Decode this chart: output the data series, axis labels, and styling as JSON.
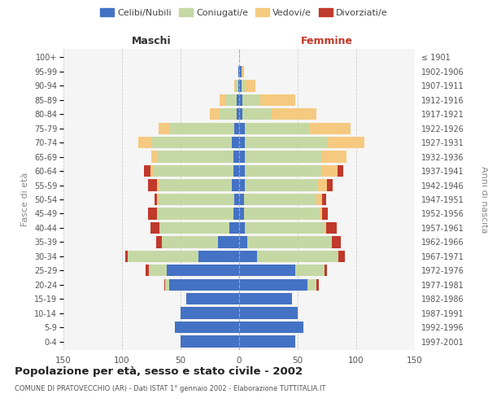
{
  "age_groups": [
    "0-4",
    "5-9",
    "10-14",
    "15-19",
    "20-24",
    "25-29",
    "30-34",
    "35-39",
    "40-44",
    "45-49",
    "50-54",
    "55-59",
    "60-64",
    "65-69",
    "70-74",
    "75-79",
    "80-84",
    "85-89",
    "90-94",
    "95-99",
    "100+"
  ],
  "birth_years": [
    "1997-2001",
    "1992-1996",
    "1987-1991",
    "1982-1986",
    "1977-1981",
    "1972-1976",
    "1967-1971",
    "1962-1966",
    "1957-1961",
    "1952-1956",
    "1947-1951",
    "1942-1946",
    "1937-1941",
    "1932-1936",
    "1927-1931",
    "1922-1926",
    "1917-1921",
    "1912-1916",
    "1907-1911",
    "1902-1906",
    "≤ 1901"
  ],
  "male_celibi": [
    50,
    55,
    50,
    45,
    60,
    62,
    35,
    18,
    8,
    5,
    4,
    6,
    5,
    5,
    6,
    4,
    2,
    2,
    1,
    1,
    0
  ],
  "male_coniugati": [
    0,
    0,
    0,
    0,
    3,
    15,
    60,
    48,
    60,
    65,
    65,
    62,
    68,
    65,
    68,
    55,
    15,
    10,
    2,
    0,
    0
  ],
  "male_vedovi": [
    0,
    0,
    0,
    0,
    0,
    0,
    0,
    0,
    0,
    0,
    1,
    2,
    3,
    5,
    12,
    10,
    8,
    5,
    1,
    0,
    0
  ],
  "male_div": [
    0,
    0,
    0,
    0,
    1,
    3,
    2,
    5,
    8,
    8,
    2,
    8,
    5,
    0,
    0,
    0,
    0,
    0,
    0,
    0,
    0
  ],
  "fem_nubili": [
    48,
    55,
    50,
    45,
    58,
    48,
    15,
    7,
    5,
    4,
    4,
    5,
    5,
    5,
    5,
    5,
    3,
    3,
    2,
    2,
    0
  ],
  "fem_coniugate": [
    0,
    0,
    0,
    0,
    8,
    25,
    70,
    72,
    68,
    65,
    62,
    62,
    65,
    65,
    70,
    55,
    25,
    15,
    3,
    0,
    0
  ],
  "fem_vedove": [
    0,
    0,
    0,
    0,
    0,
    0,
    0,
    0,
    1,
    2,
    5,
    8,
    14,
    22,
    32,
    35,
    38,
    30,
    9,
    2,
    0
  ],
  "fem_div": [
    0,
    0,
    0,
    0,
    2,
    2,
    5,
    8,
    9,
    5,
    3,
    5,
    5,
    0,
    0,
    0,
    0,
    0,
    0,
    0,
    0
  ],
  "colors": {
    "celibi": "#4472C4",
    "coniugati": "#C5D8A4",
    "vedovi": "#F5C97F",
    "divorziati": "#C0392B"
  },
  "xlim": 150,
  "xticks": [
    -150,
    -100,
    -50,
    0,
    50,
    100,
    150
  ],
  "title": "Popolazione per età, sesso e stato civile - 2002",
  "subtitle": "COMUNE DI PRATOVECCHIO (AR) - Dati ISTAT 1° gennaio 2002 - Elaborazione TUTTITALIA.IT",
  "ylabel_left": "Fasce di età",
  "ylabel_right": "Anni di nascita",
  "xlabel_maschi": "Maschi",
  "xlabel_femmine": "Femmine",
  "bg_color": "#ffffff",
  "plot_bg": "#f5f5f5",
  "grid_color": "#cccccc"
}
